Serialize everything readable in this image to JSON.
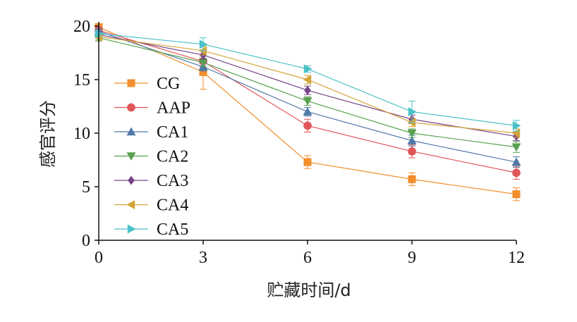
{
  "chart_data": {
    "type": "line",
    "title": "",
    "xlabel": "贮藏时间/d",
    "ylabel": "感官评分",
    "x": [
      0,
      3,
      6,
      9,
      12
    ],
    "x_ticks": [
      "0",
      "3",
      "6",
      "9",
      "12"
    ],
    "y_ticks": [
      "0",
      "5",
      "10",
      "15",
      "20"
    ],
    "xlim": [
      0,
      12
    ],
    "ylim": [
      0,
      20
    ],
    "grid": false,
    "legend_position": "left",
    "series": [
      {
        "name": "CG",
        "color": "#f28e2b",
        "marker": "square",
        "values": [
          19.9,
          15.7,
          7.3,
          5.7,
          4.3
        ],
        "errors": [
          0.3,
          1.6,
          0.6,
          0.6,
          0.6
        ]
      },
      {
        "name": "AAP",
        "color": "#e15759",
        "marker": "circle",
        "values": [
          19.6,
          16.7,
          10.7,
          8.3,
          6.3
        ],
        "errors": [
          0.3,
          0.5,
          0.6,
          0.6,
          0.6
        ]
      },
      {
        "name": "CA1",
        "color": "#4e79a7",
        "marker": "triangle-up",
        "values": [
          19.5,
          16.2,
          12.0,
          9.3,
          7.3
        ],
        "errors": [
          0.3,
          0.4,
          0.4,
          0.5,
          0.5
        ]
      },
      {
        "name": "CA2",
        "color": "#59a14f",
        "marker": "triangle-down",
        "values": [
          18.9,
          16.6,
          13.0,
          10.0,
          8.7
        ],
        "errors": [
          0.3,
          0.4,
          0.4,
          0.4,
          0.5
        ]
      },
      {
        "name": "CA3",
        "color": "#76448a",
        "marker": "diamond",
        "values": [
          19.2,
          17.3,
          14.0,
          11.3,
          9.7
        ],
        "errors": [
          0.3,
          0.4,
          0.4,
          0.4,
          0.4
        ]
      },
      {
        "name": "CA4",
        "color": "#d4a63a",
        "marker": "triangle-left",
        "values": [
          19.0,
          17.7,
          15.0,
          11.0,
          10.0
        ],
        "errors": [
          0.3,
          0.4,
          0.4,
          0.4,
          0.4
        ]
      },
      {
        "name": "CA5",
        "color": "#4ac1c9",
        "marker": "triangle-right",
        "values": [
          19.3,
          18.3,
          16.0,
          12.0,
          10.7
        ],
        "errors": [
          0.3,
          0.6,
          0.3,
          1.0,
          0.5
        ]
      }
    ]
  }
}
